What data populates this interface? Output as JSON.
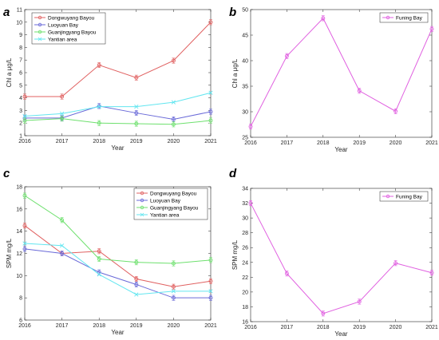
{
  "chart_data": [
    {
      "panel": "a",
      "type": "line",
      "xlabel": "Year",
      "ylabel": "Chl a μg/L",
      "x": [
        2016,
        2017,
        2018,
        2019,
        2020,
        2021
      ],
      "xlim": [
        2016,
        2021
      ],
      "ylim": [
        1,
        11
      ],
      "yticks": [
        1,
        2,
        3,
        4,
        5,
        6,
        7,
        8,
        9,
        10,
        11
      ],
      "legend": "top-left",
      "series": [
        {
          "name": "Dongwuyang Bayou",
          "color": "#e06060",
          "marker": "circle",
          "values": [
            4.1,
            4.1,
            6.6,
            5.6,
            6.95,
            10.0
          ]
        },
        {
          "name": "Luoyuan Bay",
          "color": "#6a6ad8",
          "marker": "circle",
          "values": [
            2.4,
            2.4,
            3.35,
            2.8,
            2.3,
            2.9
          ]
        },
        {
          "name": "Guanjingyang Bayou",
          "color": "#6ee06e",
          "marker": "circle",
          "values": [
            2.2,
            2.35,
            2.0,
            1.95,
            1.9,
            2.2
          ]
        },
        {
          "name": "Yantian area",
          "color": "#63e6f0",
          "marker": "x",
          "values": [
            2.55,
            2.75,
            3.3,
            3.3,
            3.65,
            4.4
          ]
        }
      ]
    },
    {
      "panel": "b",
      "type": "line",
      "xlabel": "Year",
      "ylabel": "Chl a μg/L",
      "x": [
        2016,
        2017,
        2018,
        2019,
        2020,
        2021
      ],
      "xlim": [
        2016,
        2021
      ],
      "ylim": [
        25,
        50
      ],
      "yticks": [
        25,
        30,
        35,
        40,
        45,
        50
      ],
      "legend": "top-right",
      "series": [
        {
          "name": "Funing Bay",
          "color": "#e060e0",
          "marker": "circle",
          "values": [
            27.1,
            40.9,
            48.3,
            34.1,
            30.1,
            46.2
          ]
        }
      ]
    },
    {
      "panel": "c",
      "type": "line",
      "xlabel": "Year",
      "ylabel": "SPM mg/L",
      "x": [
        2016,
        2017,
        2018,
        2019,
        2020,
        2021
      ],
      "xlim": [
        2016,
        2021
      ],
      "ylim": [
        6,
        18
      ],
      "yticks": [
        6,
        8,
        10,
        12,
        14,
        16,
        18
      ],
      "legend": "top-right",
      "series": [
        {
          "name": "Dongwuyang Bayou",
          "color": "#e06060",
          "marker": "circle",
          "values": [
            14.5,
            12.0,
            12.2,
            9.7,
            9.0,
            9.5
          ]
        },
        {
          "name": "Luoyuan Bay",
          "color": "#6a6ad8",
          "marker": "circle",
          "values": [
            12.4,
            12.0,
            10.3,
            9.2,
            8.0,
            8.0
          ]
        },
        {
          "name": "Guanjingyang Bayou",
          "color": "#6ee06e",
          "marker": "circle",
          "values": [
            17.2,
            15.0,
            11.5,
            11.2,
            11.1,
            11.4
          ]
        },
        {
          "name": "Yantian area",
          "color": "#63e6f0",
          "marker": "x",
          "values": [
            12.9,
            12.7,
            10.1,
            8.3,
            8.6,
            8.6
          ]
        }
      ]
    },
    {
      "panel": "d",
      "type": "line",
      "xlabel": "Year",
      "ylabel": "SPM mg/L",
      "x": [
        2016,
        2017,
        2018,
        2019,
        2020,
        2021
      ],
      "xlim": [
        2016,
        2021
      ],
      "ylim": [
        16,
        34
      ],
      "yticks": [
        16,
        18,
        20,
        22,
        24,
        26,
        28,
        30,
        32,
        34
      ],
      "legend": "top-right",
      "series": [
        {
          "name": "Funing Bay",
          "color": "#e060e0",
          "marker": "circle",
          "values": [
            32.0,
            22.5,
            17.1,
            18.7,
            23.9,
            22.6
          ]
        }
      ]
    }
  ]
}
